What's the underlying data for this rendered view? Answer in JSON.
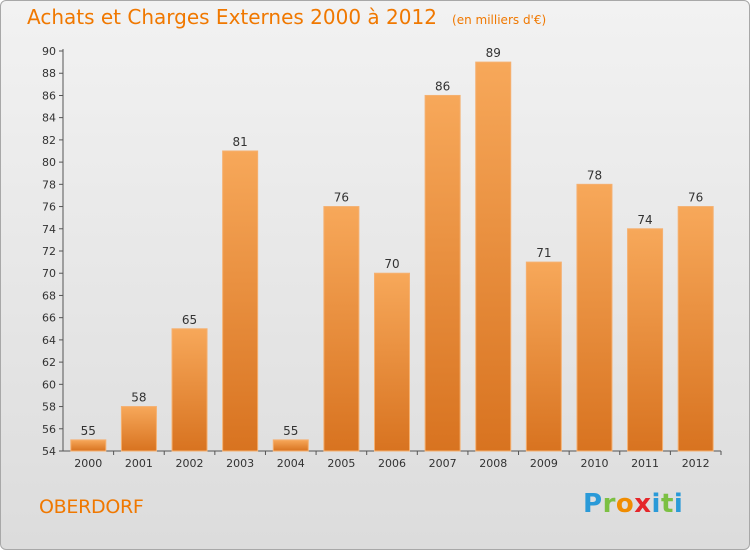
{
  "header": {
    "title": "Achats et Charges Externes 2000 à 2012",
    "unit_note": "(en milliers d'€)"
  },
  "footer": {
    "commune": "OBERDORF",
    "logo_text": "Proxiti"
  },
  "colors": {
    "accent": "#f07800",
    "bar_light": "#f7a85a",
    "bar_dark": "#d87320",
    "logo_blue": "#2a9ad8",
    "logo_green": "#7cc043",
    "logo_red": "#e5262a"
  },
  "chart_data": {
    "type": "bar",
    "title": "Achats et Charges Externes 2000 à 2012",
    "subtitle": "(en milliers d'€)",
    "categories": [
      "2000",
      "2001",
      "2002",
      "2003",
      "2004",
      "2005",
      "2006",
      "2007",
      "2008",
      "2009",
      "2010",
      "2011",
      "2012"
    ],
    "values": [
      55,
      58,
      65,
      81,
      55,
      76,
      70,
      86,
      89,
      71,
      78,
      74,
      76
    ],
    "xlabel": "",
    "ylabel": "",
    "ylim": [
      54,
      90
    ],
    "yticks": [
      54,
      56,
      58,
      60,
      62,
      64,
      66,
      68,
      70,
      72,
      74,
      76,
      78,
      80,
      82,
      84,
      86,
      88,
      90
    ],
    "grid": false,
    "legend": "none",
    "data_labels": true
  }
}
